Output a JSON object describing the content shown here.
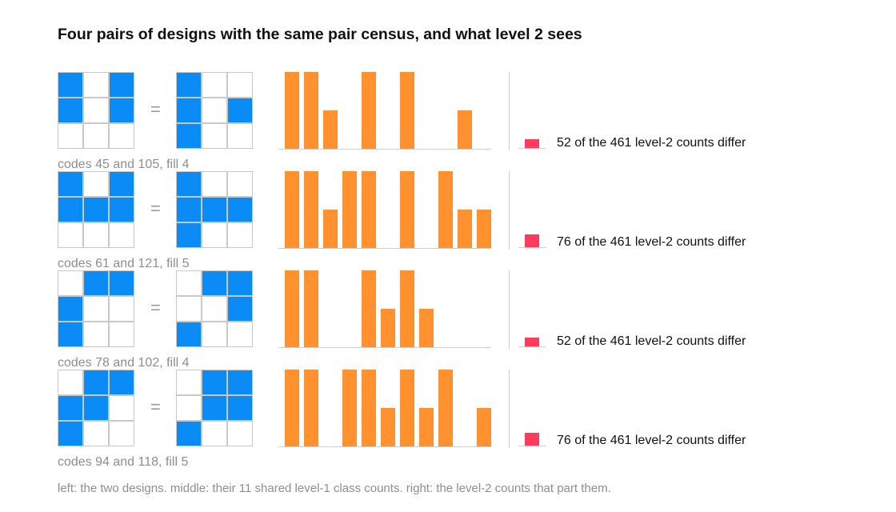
{
  "title": "Four pairs of designs with the same pair census, and what level 2 sees",
  "footnote": "left: the two designs. middle: their 11 shared level-1 class counts. right: the level-2 counts that part them.",
  "colors": {
    "filled_cell": "#0a8bf5",
    "bar": "#ff922e",
    "diff_marker": "#ff3b5c"
  },
  "equals_sign": "=",
  "chart_data": {
    "type": "bar",
    "bar_scale_max": 2,
    "level2_total": 461,
    "rows": [
      {
        "caption": "codes 45 and 105, fill 4",
        "design_a": [
          [
            1,
            0,
            1
          ],
          [
            1,
            0,
            1
          ],
          [
            0,
            0,
            0
          ]
        ],
        "design_b": [
          [
            1,
            0,
            0
          ],
          [
            1,
            0,
            1
          ],
          [
            1,
            0,
            0
          ]
        ],
        "level1_counts": [
          2,
          2,
          1,
          0,
          2,
          0,
          2,
          0,
          0,
          1,
          0
        ],
        "differ": 52,
        "diff_label": "52 of the 461 level-2 counts differ"
      },
      {
        "caption": "codes 61 and 121, fill 5",
        "design_a": [
          [
            1,
            0,
            1
          ],
          [
            1,
            1,
            1
          ],
          [
            0,
            0,
            0
          ]
        ],
        "design_b": [
          [
            1,
            0,
            0
          ],
          [
            1,
            1,
            1
          ],
          [
            1,
            0,
            0
          ]
        ],
        "level1_counts": [
          2,
          2,
          1,
          2,
          2,
          0,
          2,
          0,
          2,
          1,
          1
        ],
        "differ": 76,
        "diff_label": "76 of the 461 level-2 counts differ"
      },
      {
        "caption": "codes 78 and 102, fill 4",
        "design_a": [
          [
            0,
            1,
            1
          ],
          [
            1,
            0,
            0
          ],
          [
            1,
            0,
            0
          ]
        ],
        "design_b": [
          [
            0,
            1,
            1
          ],
          [
            0,
            0,
            1
          ],
          [
            1,
            0,
            0
          ]
        ],
        "level1_counts": [
          2,
          2,
          0,
          0,
          2,
          1,
          2,
          1,
          0,
          0,
          0
        ],
        "differ": 52,
        "diff_label": "52 of the 461 level-2 counts differ"
      },
      {
        "caption": "codes 94 and 118, fill 5",
        "design_a": [
          [
            0,
            1,
            1
          ],
          [
            1,
            1,
            0
          ],
          [
            1,
            0,
            0
          ]
        ],
        "design_b": [
          [
            0,
            1,
            1
          ],
          [
            0,
            1,
            1
          ],
          [
            1,
            0,
            0
          ]
        ],
        "level1_counts": [
          2,
          2,
          0,
          2,
          2,
          1,
          2,
          1,
          2,
          0,
          1
        ],
        "differ": 76,
        "diff_label": "76 of the 461 level-2 counts differ"
      }
    ]
  }
}
